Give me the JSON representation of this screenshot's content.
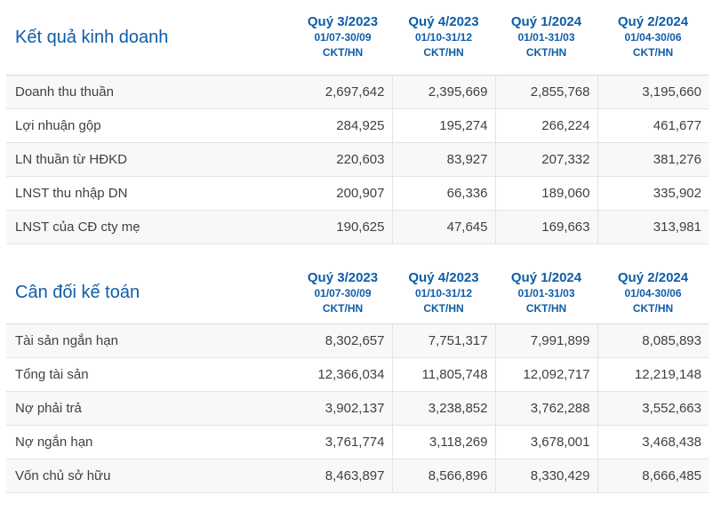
{
  "page": {
    "background": "#ffffff"
  },
  "colors": {
    "accent_blue": "#0e5da9",
    "row_alt_bg": "#f8f8f8",
    "row_border": "#e3e3e3",
    "header_border": "#d8d8d8",
    "text": "#404040"
  },
  "tables": [
    {
      "title": "Kết quả kinh doanh",
      "columns": [
        {
          "quarter": "Quý 3/2023",
          "period": "01/07-30/09",
          "basis": "CKT/HN"
        },
        {
          "quarter": "Quý 4/2023",
          "period": "01/10-31/12",
          "basis": "CKT/HN"
        },
        {
          "quarter": "Quý 1/2024",
          "period": "01/01-31/03",
          "basis": "CKT/HN"
        },
        {
          "quarter": "Quý 2/2024",
          "period": "01/04-30/06",
          "basis": "CKT/HN"
        }
      ],
      "rows": [
        {
          "label": "Doanh thu thuần",
          "values": [
            "2,697,642",
            "2,395,669",
            "2,855,768",
            "3,195,660"
          ]
        },
        {
          "label": "Lợi nhuận gộp",
          "values": [
            "284,925",
            "195,274",
            "266,224",
            "461,677"
          ]
        },
        {
          "label": "LN thuần từ HĐKD",
          "values": [
            "220,603",
            "83,927",
            "207,332",
            "381,276"
          ]
        },
        {
          "label": "LNST thu nhập DN",
          "values": [
            "200,907",
            "66,336",
            "189,060",
            "335,902"
          ]
        },
        {
          "label": "LNST của CĐ cty mẹ",
          "values": [
            "190,625",
            "47,645",
            "169,663",
            "313,981"
          ]
        }
      ]
    },
    {
      "title": "Cân đối kế toán",
      "columns": [
        {
          "quarter": "Quý 3/2023",
          "period": "01/07-30/09",
          "basis": "CKT/HN"
        },
        {
          "quarter": "Quý 4/2023",
          "period": "01/10-31/12",
          "basis": "CKT/HN"
        },
        {
          "quarter": "Quý 1/2024",
          "period": "01/01-31/03",
          "basis": "CKT/HN"
        },
        {
          "quarter": "Quý 2/2024",
          "period": "01/04-30/06",
          "basis": "CKT/HN"
        }
      ],
      "rows": [
        {
          "label": "Tài sản ngắn hạn",
          "values": [
            "8,302,657",
            "7,751,317",
            "7,991,899",
            "8,085,893"
          ]
        },
        {
          "label": "Tổng tài sản",
          "values": [
            "12,366,034",
            "11,805,748",
            "12,092,717",
            "12,219,148"
          ]
        },
        {
          "label": "Nợ phải trả",
          "values": [
            "3,902,137",
            "3,238,852",
            "3,762,288",
            "3,552,663"
          ]
        },
        {
          "label": "Nợ ngắn hạn",
          "values": [
            "3,761,774",
            "3,118,269",
            "3,678,001",
            "3,468,438"
          ]
        },
        {
          "label": "Vốn chủ sở hữu",
          "values": [
            "8,463,897",
            "8,566,896",
            "8,330,429",
            "8,666,485"
          ]
        }
      ]
    }
  ]
}
